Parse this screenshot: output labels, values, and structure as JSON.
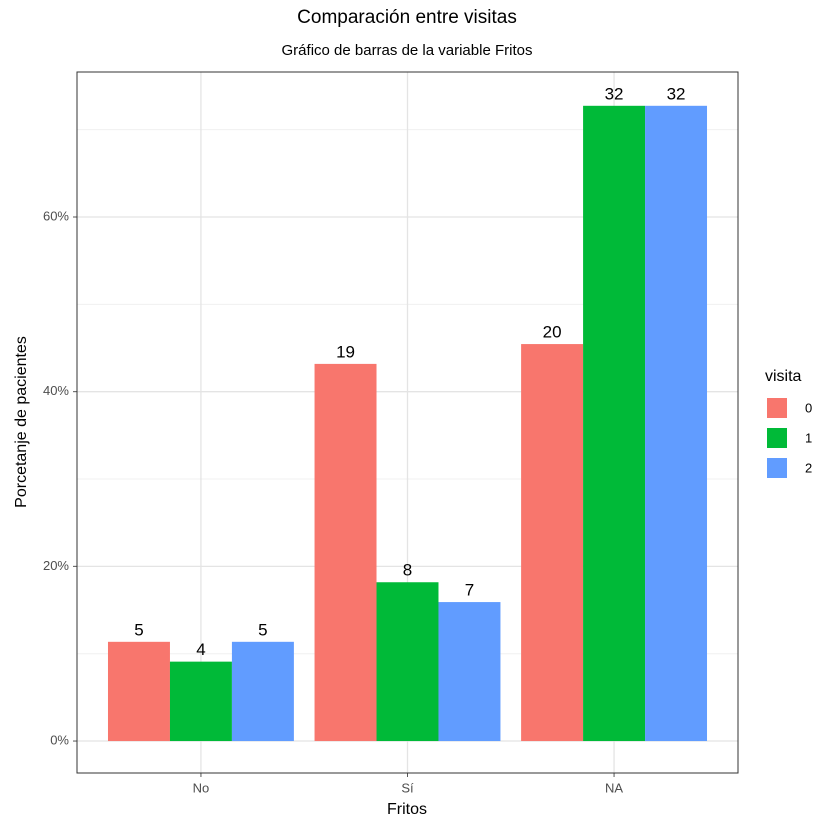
{
  "chart_data": {
    "type": "bar",
    "title": "Comparación entre visitas",
    "subtitle": "Gráfico de barras de la variable Fritos",
    "x_label": "Fritos",
    "y_label": "Porcetanje de pacientes",
    "legend_title": "visita",
    "categories": [
      "No",
      "Sí",
      "NA"
    ],
    "series": [
      {
        "name": "0",
        "color": "#f8766d",
        "values": [
          11.36,
          43.18,
          45.45
        ],
        "counts": [
          5,
          19,
          20
        ]
      },
      {
        "name": "1",
        "color": "#00ba38",
        "values": [
          9.09,
          18.18,
          72.73
        ],
        "counts": [
          4,
          8,
          32
        ]
      },
      {
        "name": "2",
        "color": "#619cff",
        "values": [
          11.36,
          15.91,
          72.73
        ],
        "counts": [
          5,
          7,
          32
        ]
      }
    ],
    "ylim": [
      -3.66,
      76.6
    ],
    "yticks": [
      {
        "value": 0,
        "label": "0%"
      },
      {
        "value": 20,
        "label": "20%"
      },
      {
        "value": 40,
        "label": "40%"
      },
      {
        "value": 60,
        "label": "60%"
      }
    ],
    "minor_yticks": [
      10,
      30,
      50,
      70
    ],
    "grid": true,
    "legend": "right"
  }
}
